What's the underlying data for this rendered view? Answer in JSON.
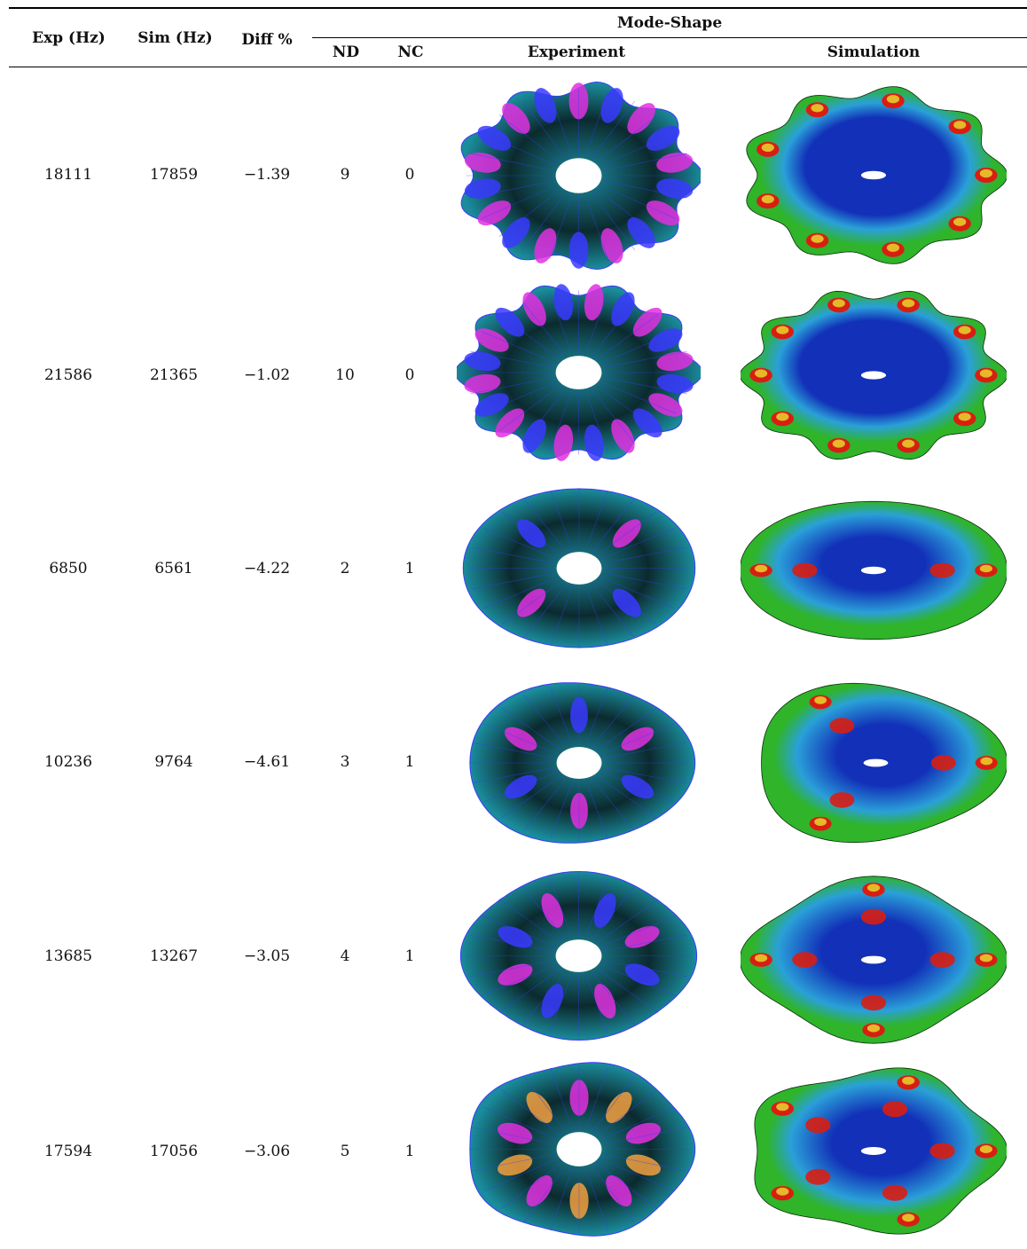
{
  "table": {
    "headers": {
      "exp": "Exp (Hz)",
      "sim": "Sim (Hz)",
      "diff": "Diff %",
      "mode_shape": "Mode-Shape",
      "nd": "ND",
      "nc": "NC",
      "experiment": "Experiment",
      "simulation": "Simulation"
    },
    "rows": [
      {
        "exp": "18111",
        "sim": "17859",
        "diff": "−1.39",
        "nd": "9",
        "nc": "0"
      },
      {
        "exp": "21586",
        "sim": "21365",
        "diff": "−1.02",
        "nd": "10",
        "nc": "0"
      },
      {
        "exp": "6850",
        "sim": "6561",
        "diff": "−4.22",
        "nd": "2",
        "nc": "1"
      },
      {
        "exp": "10236",
        "sim": "9764",
        "diff": "−4.61",
        "nd": "3",
        "nc": "1"
      },
      {
        "exp": "13685",
        "sim": "13267",
        "diff": "−3.05",
        "nd": "4",
        "nc": "1"
      },
      {
        "exp": "17594",
        "sim": "17056",
        "diff": "−3.06",
        "nd": "5",
        "nc": "1"
      }
    ]
  },
  "colors": {
    "exp_dark": "#0b2a2e",
    "exp_teal": "#1a8c9c",
    "exp_magenta": "#e030e0",
    "exp_blue": "#3a3aff",
    "exp_orange": "#f2a040",
    "sim_red": "#d81e12",
    "sim_green": "#2fb42a",
    "sim_yellow": "#e8e030",
    "sim_blue": "#1230b8",
    "sim_cyan": "#2aa0d8"
  }
}
